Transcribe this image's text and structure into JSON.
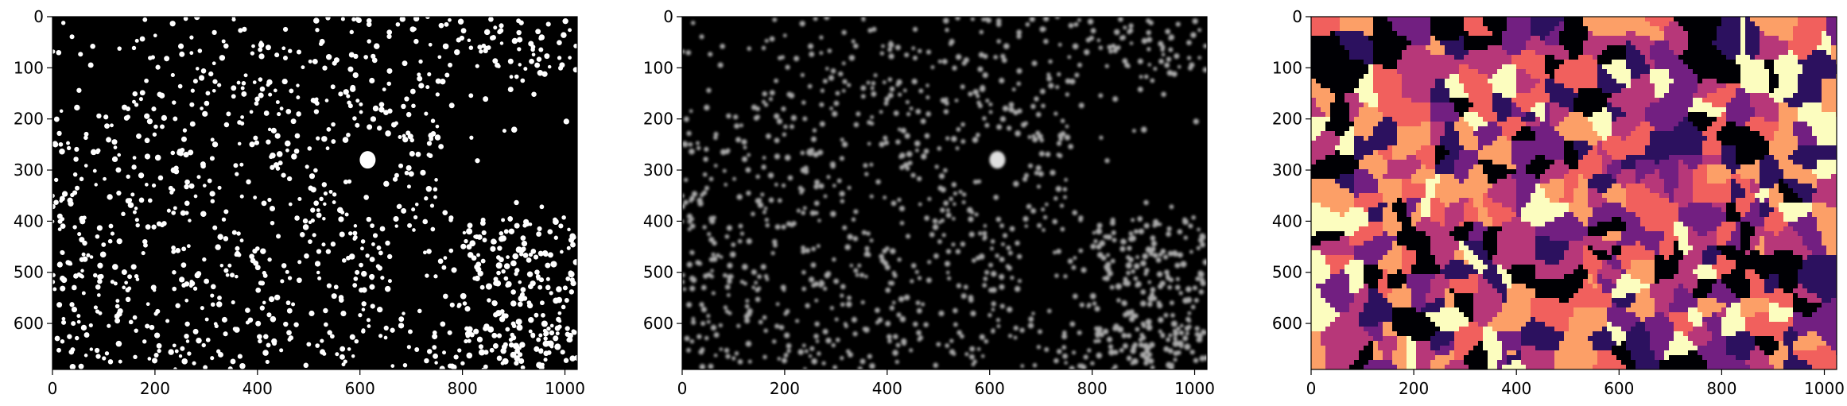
{
  "chart_data": [
    {
      "type": "image",
      "colormap": "binary",
      "description_colors": {
        "background": "#000000",
        "foreground": "#ffffff"
      },
      "xlim": [
        0,
        1024
      ],
      "ylim": [
        690,
        0
      ],
      "xticks": [
        0,
        200,
        400,
        600,
        800,
        1000
      ],
      "yticks": [
        0,
        100,
        200,
        300,
        400,
        500,
        600
      ],
      "xtick_labels": [
        "0",
        "200",
        "400",
        "600",
        "800",
        "1000"
      ],
      "ytick_labels": [
        "0",
        "100",
        "200",
        "300",
        "400",
        "500",
        "600"
      ],
      "bright_blob": {
        "x": 615,
        "y": 280
      }
    },
    {
      "type": "image",
      "colormap": "gray",
      "description_colors": {
        "background": "#000000",
        "foreground": "#c8c8c8"
      },
      "xlim": [
        0,
        1024
      ],
      "ylim": [
        690,
        0
      ],
      "xticks": [
        0,
        200,
        400,
        600,
        800,
        1000
      ],
      "yticks": [
        0,
        100,
        200,
        300,
        400,
        500,
        600
      ],
      "xtick_labels": [
        "0",
        "200",
        "400",
        "600",
        "800",
        "1000"
      ],
      "ytick_labels": [
        "0",
        "100",
        "200",
        "300",
        "400",
        "500",
        "600"
      ],
      "bright_blob": {
        "x": 615,
        "y": 280
      }
    },
    {
      "type": "image",
      "colormap": "magma",
      "description_colors": {
        "palette": [
          "#000004",
          "#2c115f",
          "#721f81",
          "#b73779",
          "#f1605d",
          "#fc9f67",
          "#fcfdbf"
        ]
      },
      "xlim": [
        0,
        1024
      ],
      "ylim": [
        690,
        0
      ],
      "xticks": [
        0,
        200,
        400,
        600,
        800,
        1000
      ],
      "yticks": [
        0,
        100,
        200,
        300,
        400,
        500,
        600
      ],
      "xtick_labels": [
        "0",
        "200",
        "400",
        "600",
        "800",
        "1000"
      ],
      "ytick_labels": [
        "0",
        "100",
        "200",
        "300",
        "400",
        "500",
        "600"
      ]
    }
  ]
}
